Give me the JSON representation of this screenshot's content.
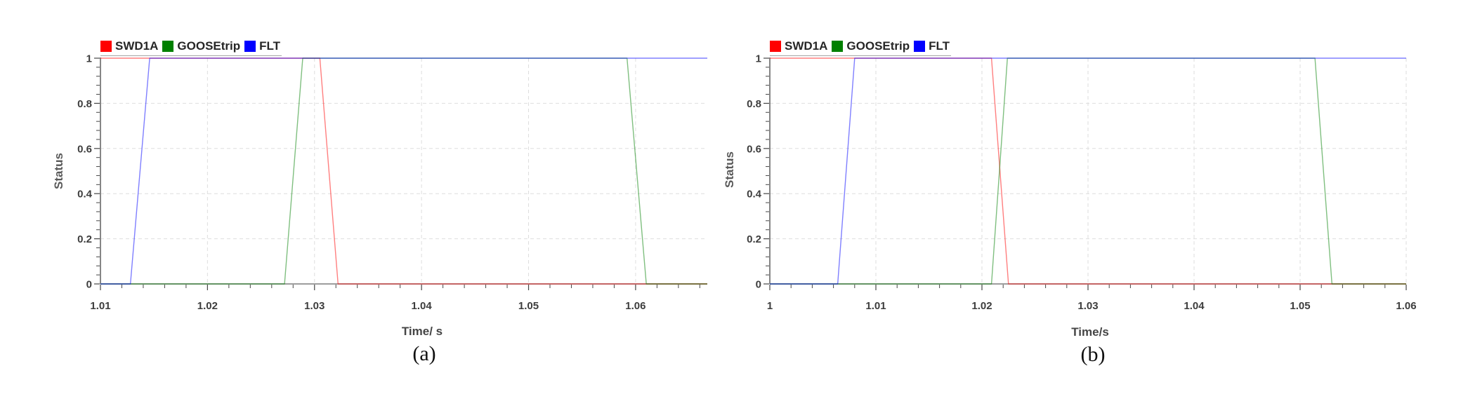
{
  "page": {
    "background": "#ffffff"
  },
  "chart_data": [
    {
      "type": "line",
      "caption": "(a)",
      "title": "",
      "xlabel": "Time/ s",
      "ylabel": "Status",
      "xlim": [
        1.01,
        1.0667
      ],
      "ylim": [
        0,
        1
      ],
      "xticks": [
        1.01,
        1.02,
        1.03,
        1.04,
        1.05,
        1.06
      ],
      "xtick_labels": [
        "1.01",
        "1.02",
        "1.03",
        "1.04",
        "1.05",
        "1.06"
      ],
      "yticks": [
        0,
        0.2,
        0.4,
        0.6,
        0.8,
        1
      ],
      "ytick_labels": [
        "0",
        "0.2",
        "0.4",
        "0.6",
        "0.8",
        "1"
      ],
      "x_minor_step": 0.002,
      "y_minor_step": 0.04,
      "grid": true,
      "legend_position": "top-left",
      "series": [
        {
          "name": "SWD1A",
          "color": "#ff0000",
          "points": [
            [
              1.01,
              1
            ],
            [
              1.0305,
              1
            ],
            [
              1.0322,
              0
            ],
            [
              1.0667,
              0
            ]
          ]
        },
        {
          "name": "GOOSEtrip",
          "color": "#008000",
          "points": [
            [
              1.01,
              0
            ],
            [
              1.0272,
              0
            ],
            [
              1.0289,
              1
            ],
            [
              1.0592,
              1
            ],
            [
              1.061,
              0
            ],
            [
              1.0667,
              0
            ]
          ]
        },
        {
          "name": "FLT",
          "color": "#0000ff",
          "points": [
            [
              1.01,
              0
            ],
            [
              1.0128,
              0
            ],
            [
              1.0146,
              1
            ],
            [
              1.0667,
              1
            ]
          ]
        }
      ]
    },
    {
      "type": "line",
      "caption": "(b)",
      "title": "",
      "xlabel": "Time/s",
      "ylabel": "Status",
      "xlim": [
        1.0,
        1.06
      ],
      "ylim": [
        0,
        1
      ],
      "xticks": [
        1.0,
        1.01,
        1.02,
        1.03,
        1.04,
        1.05,
        1.06
      ],
      "xtick_labels": [
        "1",
        "1.01",
        "1.02",
        "1.03",
        "1.04",
        "1.05",
        "1.06"
      ],
      "yticks": [
        0,
        0.2,
        0.4,
        0.6,
        0.8,
        1
      ],
      "ytick_labels": [
        "0",
        "0.2",
        "0.4",
        "0.6",
        "0.8",
        "1"
      ],
      "x_minor_step": 0.002,
      "y_minor_step": 0.04,
      "grid": true,
      "legend_position": "top-left",
      "series": [
        {
          "name": "SWD1A",
          "color": "#ff0000",
          "points": [
            [
              1.0,
              1
            ],
            [
              1.0209,
              1
            ],
            [
              1.0225,
              0
            ],
            [
              1.06,
              0
            ]
          ]
        },
        {
          "name": "GOOSEtrip",
          "color": "#008000",
          "points": [
            [
              1.0,
              0
            ],
            [
              1.0209,
              0
            ],
            [
              1.0224,
              1
            ],
            [
              1.0514,
              1
            ],
            [
              1.053,
              0
            ],
            [
              1.06,
              0
            ]
          ]
        },
        {
          "name": "FLT",
          "color": "#0000ff",
          "points": [
            [
              1.0,
              0
            ],
            [
              1.0064,
              0
            ],
            [
              1.008,
              1
            ],
            [
              1.06,
              1
            ]
          ]
        }
      ]
    }
  ],
  "style": {
    "grid_color": "#dedede",
    "axis_color": "#454545",
    "baseline_color": "#8f8f8f",
    "tick_label_color": "#3d3d3d",
    "line_opacity": 0.5
  }
}
